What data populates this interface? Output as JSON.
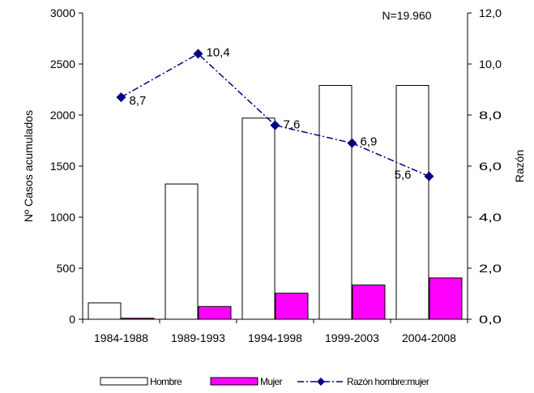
{
  "chart_data": {
    "type": "bar",
    "annotation": "N=19.960",
    "categories": [
      "1984-1988",
      "1989-1993",
      "1994-1998",
      "1999-2003",
      "2004-2008"
    ],
    "series": [
      {
        "name": "Hombre",
        "type": "bar",
        "axis": "left",
        "color": "#ffffff",
        "values": [
          160,
          1325,
          1970,
          2290,
          2290
        ]
      },
      {
        "name": "Mujer",
        "type": "bar",
        "axis": "left",
        "color": "#ff00ff",
        "values": [
          10,
          125,
          255,
          335,
          405
        ]
      },
      {
        "name": "Razón hombre:mujer",
        "type": "line",
        "axis": "right",
        "color": "#000080",
        "line_style": "dash-dot",
        "marker": "diamond",
        "values": [
          8.7,
          10.4,
          7.6,
          6.9,
          5.6
        ],
        "labels": [
          "8,7",
          "10,4",
          "7,6",
          "6,9",
          "5,6"
        ]
      }
    ],
    "ylabel": "Nº Casos acumulados",
    "y2label": "Razón",
    "ylim": [
      0,
      3000
    ],
    "y2lim": [
      0,
      12
    ],
    "yticks": [
      "0",
      "500",
      "1000",
      "1500",
      "2000",
      "2500",
      "3000"
    ],
    "y2ticks": [
      "0,0",
      "2,0",
      "4,0",
      "6,0",
      "8,0",
      "10,0",
      "12,0"
    ],
    "legend_position": "bottom",
    "grid": false
  }
}
